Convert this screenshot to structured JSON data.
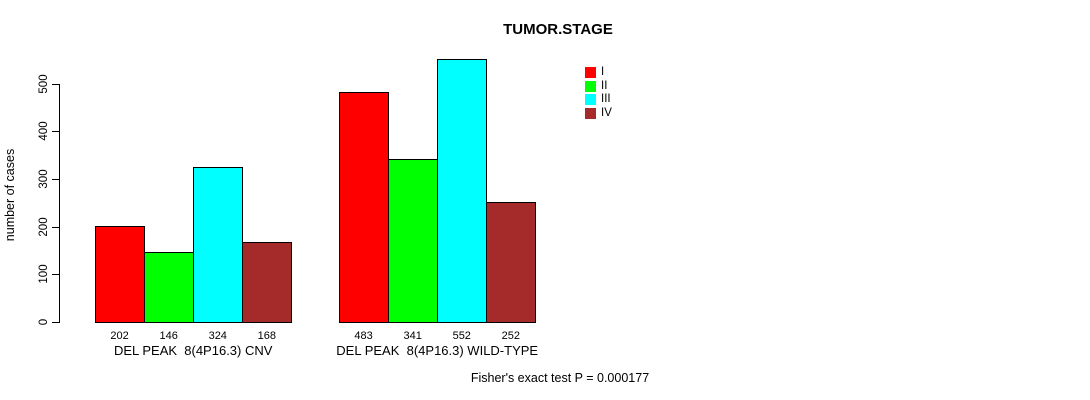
{
  "chart_data": {
    "type": "bar",
    "title": "TUMOR.STAGE",
    "ylabel": "number of cases",
    "xlabel": "",
    "yticks": [
      0,
      100,
      200,
      300,
      400,
      500
    ],
    "ylim": [
      0,
      560
    ],
    "grid": false,
    "legend_position": "top-right",
    "categories": [
      "DEL PEAK  8(4P16.3) CNV",
      "DEL PEAK  8(4P16.3) WILD-TYPE"
    ],
    "series": [
      {
        "name": "I",
        "color": "#ff0000",
        "values": [
          202,
          483
        ]
      },
      {
        "name": "II",
        "color": "#00ff00",
        "values": [
          146,
          341
        ]
      },
      {
        "name": "III",
        "color": "#00ffff",
        "values": [
          324,
          552
        ]
      },
      {
        "name": "IV",
        "color": "#a52a2a",
        "values": [
          168,
          252
        ]
      }
    ],
    "bar_value_labels": [
      [
        "202",
        "146",
        "324",
        "168"
      ],
      [
        "483",
        "341",
        "552",
        "252"
      ]
    ],
    "annotation": "Fisher's exact test P = 0.000177",
    "colors": {
      "background": "#ffffff",
      "axis": "#000000",
      "text": "#000000"
    }
  }
}
